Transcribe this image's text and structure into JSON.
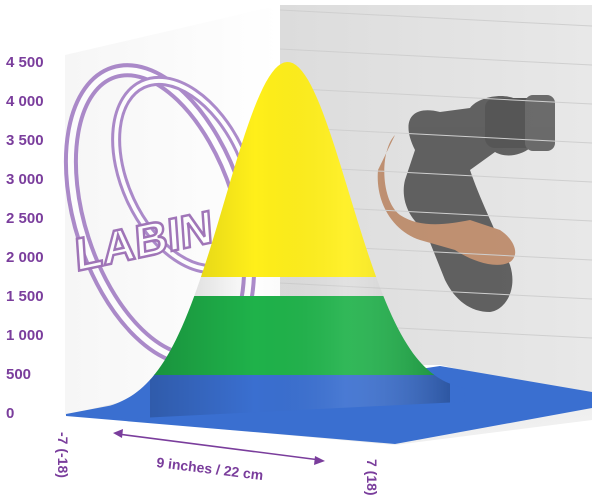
{
  "chart_data": {
    "type": "surface",
    "y_ticks": [
      "0",
      "500",
      "1 000",
      "1 500",
      "2 000",
      "2 500",
      "3 000",
      "3 500",
      "4 000",
      "4 500"
    ],
    "y_values": [
      0,
      500,
      1000,
      1500,
      2000,
      2500,
      3000,
      3500,
      4000,
      4500
    ],
    "ylim": [
      0,
      4500
    ],
    "x_ticks": [
      "-7 (-18)",
      "7 (18)"
    ],
    "x_range": [
      -7,
      7
    ],
    "peak_value": 4500,
    "color_bands": [
      {
        "from": 0,
        "to": 500,
        "color": "#3a6fd0"
      },
      {
        "from": 500,
        "to": 1500,
        "color": "#1fb24a"
      },
      {
        "from": 1500,
        "to": 4500,
        "color": "#ffef1a"
      }
    ],
    "dimension_label": "9 inches / 22 cm",
    "watermark_text": "LABIN"
  },
  "colors": {
    "label": "#7a3d9c",
    "grid": "#cfcfcf",
    "back_wall": "#e6e6e6",
    "floor": "#e2e2e2"
  }
}
